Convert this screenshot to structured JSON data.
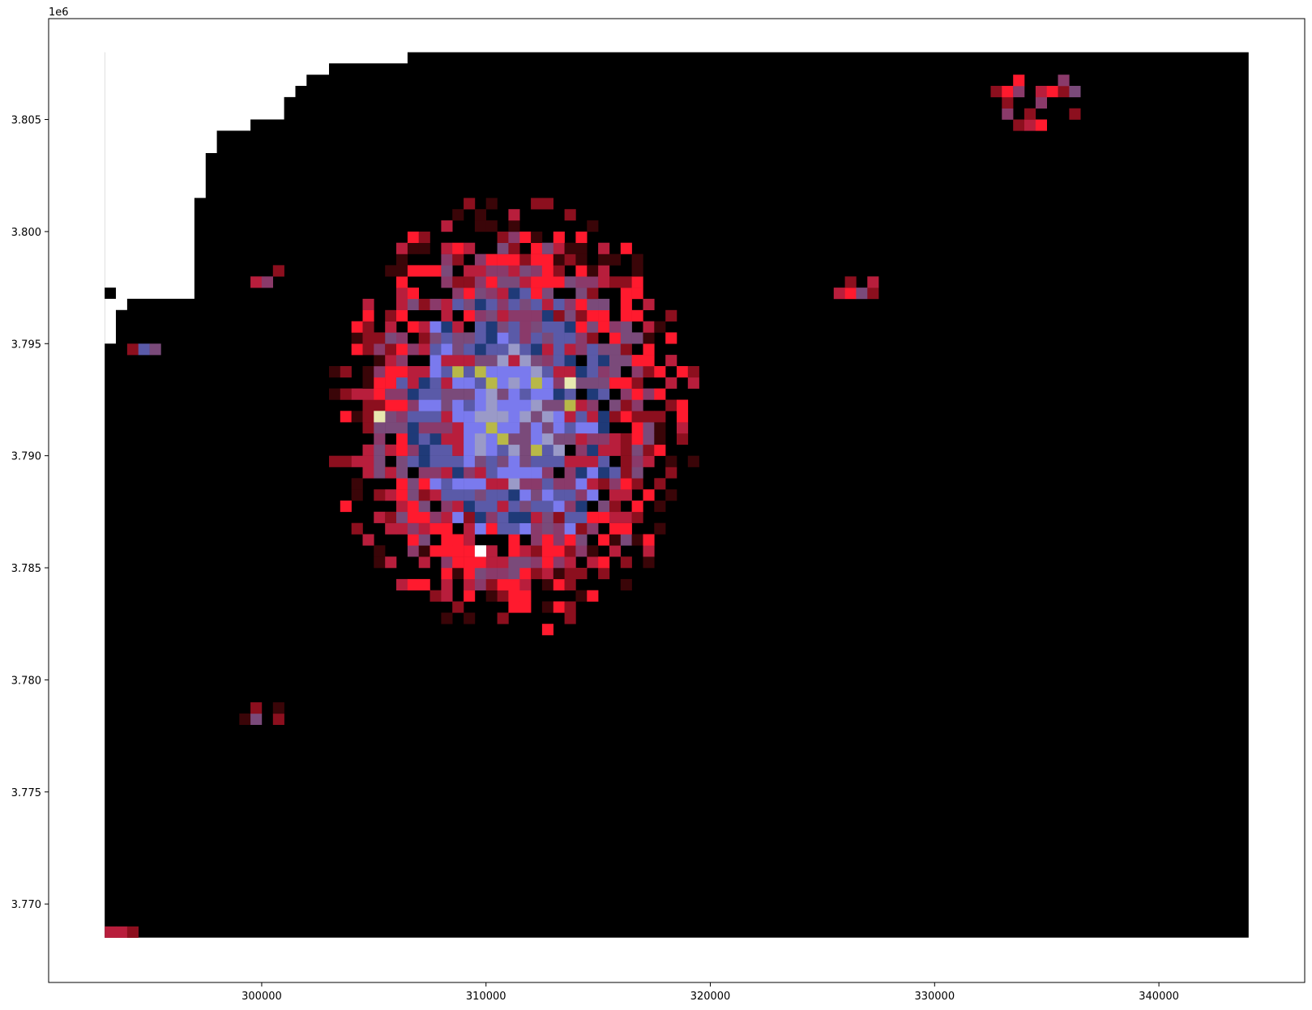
{
  "chart_data": {
    "type": "heatmap",
    "title": "",
    "xlabel": "",
    "ylabel": "",
    "x_offset_text": "",
    "y_offset_text": "1e6",
    "xlim": [
      290500,
      346500
    ],
    "ylim": [
      3766500,
      3809500
    ],
    "xticks": [
      300000,
      310000,
      320000,
      330000,
      340000
    ],
    "xtick_labels": [
      "300000",
      "310000",
      "320000",
      "330000",
      "340000"
    ],
    "yticks": [
      3.77,
      3.775,
      3.78,
      3.785,
      3.79,
      3.795,
      3.8,
      3.805
    ],
    "ytick_labels": [
      "3.770",
      "3.775",
      "3.780",
      "3.785",
      "3.790",
      "3.795",
      "3.800",
      "3.805"
    ],
    "grid": false,
    "raster": {
      "cell_size_m": 500,
      "extent_x": [
        293000,
        344000
      ],
      "extent_y": [
        3768500,
        3808000
      ],
      "background_color": "#000000",
      "nodata_color": "#ffffff",
      "nodata_region_note": "",
      "palette": {
        "red": "#ff1a2e",
        "dark_red": "#8c0f1e",
        "crimson": "#b81e3c",
        "purple": "#8a3a6a",
        "mauve": "#7a4a7a",
        "navy": "#1f3a78",
        "slate": "#5a5aa8",
        "blue": "#7a7aee",
        "lavender": "#9a9ac8",
        "khaki": "#b8b848",
        "pale_yellow": "#e8e8b0",
        "white": "#ffffff"
      },
      "density_center": [
        311200,
        3791800
      ],
      "density_radius_m": 8500,
      "satellite_clusters": [
        {
          "center": [
            334700,
            3805800
          ],
          "radius_m": 2200
        },
        {
          "center": [
            326600,
            3797400
          ],
          "radius_m": 1000
        },
        {
          "center": [
            300000,
            3778500
          ],
          "radius_m": 900
        },
        {
          "center": [
            294800,
            3794700
          ],
          "radius_m": 600
        },
        {
          "center": [
            300000,
            3798000
          ],
          "radius_m": 900
        }
      ]
    }
  }
}
